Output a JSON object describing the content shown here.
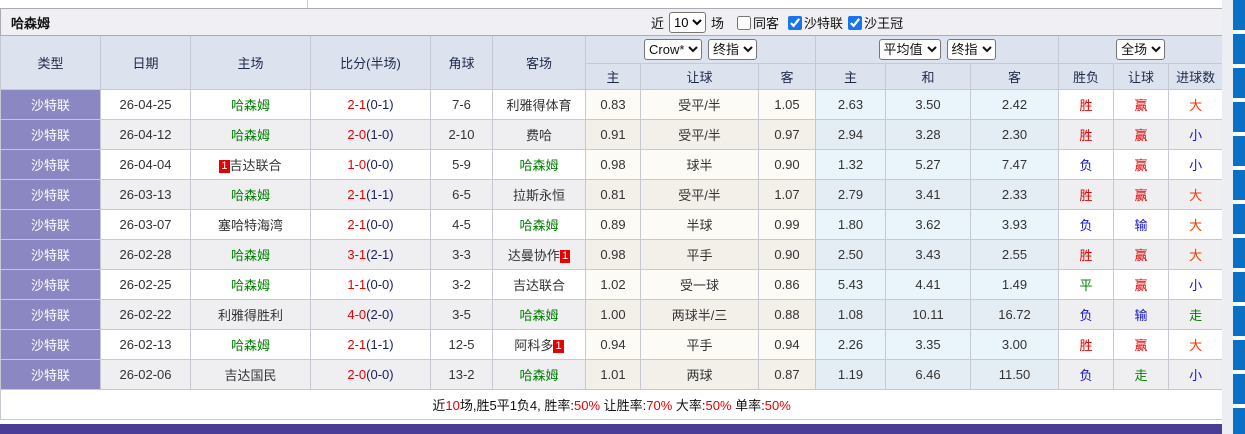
{
  "title": "哈森姆",
  "controls": {
    "recent_label": "近",
    "recent_value": "10",
    "matches_label": "场",
    "checkboxes": [
      {
        "label": "同客",
        "checked": false
      },
      {
        "label": "沙特联",
        "checked": true
      },
      {
        "label": "沙王冠",
        "checked": true
      }
    ]
  },
  "header": {
    "static_cols": [
      "类型",
      "日期",
      "主场",
      "比分(半场)",
      "角球",
      "客场"
    ],
    "odds_group": {
      "selects": [
        "Crow*",
        "终指"
      ],
      "sub": [
        "主",
        "让球",
        "客"
      ]
    },
    "avg_group": {
      "selects": [
        "平均值",
        "终指"
      ],
      "sub": [
        "主",
        "和",
        "客"
      ]
    },
    "result_group": {
      "selects": [
        "全场"
      ],
      "sub": [
        "胜负",
        "让球",
        "进球数"
      ]
    }
  },
  "colors": {
    "accent_purple": "#8b87c3",
    "header_bg": "#dde2ef",
    "blue_bar": "#0a70c6",
    "bottom_bar": "#4a3d96",
    "win_red": "#e60000",
    "lose_blue": "#1414cd",
    "draw_green": "#008000"
  },
  "rows": [
    {
      "type": "沙特联",
      "date": "26-04-25",
      "home": {
        "name": "哈森姆",
        "green": true,
        "badge": null
      },
      "score_ft": "2-1",
      "score_ht": "(0-1)",
      "corner": "7-6",
      "away": {
        "name": "利雅得体育",
        "green": false,
        "badge": null
      },
      "odds": [
        "0.83",
        "受平/半",
        "1.05"
      ],
      "avg": [
        "2.63",
        "3.50",
        "2.42"
      ],
      "res": [
        {
          "t": "胜",
          "c": "r"
        },
        {
          "t": "赢",
          "c": "r"
        },
        {
          "t": "大",
          "c": "o"
        }
      ]
    },
    {
      "type": "沙特联",
      "date": "26-04-12",
      "home": {
        "name": "哈森姆",
        "green": true,
        "badge": null
      },
      "score_ft": "2-0",
      "score_ht": "(1-0)",
      "corner": "2-10",
      "away": {
        "name": "费哈",
        "green": false,
        "badge": null
      },
      "odds": [
        "0.91",
        "受平/半",
        "0.97"
      ],
      "avg": [
        "2.94",
        "3.28",
        "2.30"
      ],
      "res": [
        {
          "t": "胜",
          "c": "r"
        },
        {
          "t": "赢",
          "c": "r"
        },
        {
          "t": "小",
          "c": "b"
        }
      ]
    },
    {
      "type": "沙特联",
      "date": "26-04-04",
      "home": {
        "name": "吉达联合",
        "green": false,
        "badge": "before"
      },
      "score_ft": "1-0",
      "score_ht": "(0-0)",
      "corner": "5-9",
      "away": {
        "name": "哈森姆",
        "green": true,
        "badge": null
      },
      "odds": [
        "0.98",
        "球半",
        "0.90"
      ],
      "avg": [
        "1.32",
        "5.27",
        "7.47"
      ],
      "res": [
        {
          "t": "负",
          "c": "b"
        },
        {
          "t": "赢",
          "c": "r"
        },
        {
          "t": "小",
          "c": "b"
        }
      ]
    },
    {
      "type": "沙特联",
      "date": "26-03-13",
      "home": {
        "name": "哈森姆",
        "green": true,
        "badge": null
      },
      "score_ft": "2-1",
      "score_ht": "(1-1)",
      "corner": "6-5",
      "away": {
        "name": "拉斯永恒",
        "green": false,
        "badge": null
      },
      "odds": [
        "0.81",
        "受平/半",
        "1.07"
      ],
      "avg": [
        "2.79",
        "3.41",
        "2.33"
      ],
      "res": [
        {
          "t": "胜",
          "c": "r"
        },
        {
          "t": "赢",
          "c": "r"
        },
        {
          "t": "大",
          "c": "o"
        }
      ]
    },
    {
      "type": "沙特联",
      "date": "26-03-07",
      "home": {
        "name": "塞哈特海湾",
        "green": false,
        "badge": null
      },
      "score_ft": "2-1",
      "score_ht": "(0-0)",
      "corner": "4-5",
      "away": {
        "name": "哈森姆",
        "green": true,
        "badge": null
      },
      "odds": [
        "0.89",
        "半球",
        "0.99"
      ],
      "avg": [
        "1.80",
        "3.62",
        "3.93"
      ],
      "res": [
        {
          "t": "负",
          "c": "b"
        },
        {
          "t": "输",
          "c": "b"
        },
        {
          "t": "大",
          "c": "o"
        }
      ]
    },
    {
      "type": "沙特联",
      "date": "26-02-28",
      "home": {
        "name": "哈森姆",
        "green": true,
        "badge": null
      },
      "score_ft": "3-1",
      "score_ht": "(2-1)",
      "corner": "3-3",
      "away": {
        "name": "达曼协作",
        "green": false,
        "badge": "after"
      },
      "odds": [
        "0.98",
        "平手",
        "0.90"
      ],
      "avg": [
        "2.50",
        "3.43",
        "2.55"
      ],
      "res": [
        {
          "t": "胜",
          "c": "r"
        },
        {
          "t": "赢",
          "c": "r"
        },
        {
          "t": "大",
          "c": "o"
        }
      ]
    },
    {
      "type": "沙特联",
      "date": "26-02-25",
      "home": {
        "name": "哈森姆",
        "green": true,
        "badge": null
      },
      "score_ft": "1-1",
      "score_ht": "(0-0)",
      "corner": "3-2",
      "away": {
        "name": "吉达联合",
        "green": false,
        "badge": null
      },
      "odds": [
        "1.02",
        "受一球",
        "0.86"
      ],
      "avg": [
        "5.43",
        "4.41",
        "1.49"
      ],
      "res": [
        {
          "t": "平",
          "c": "g"
        },
        {
          "t": "赢",
          "c": "r"
        },
        {
          "t": "小",
          "c": "b"
        }
      ]
    },
    {
      "type": "沙特联",
      "date": "26-02-22",
      "home": {
        "name": "利雅得胜利",
        "green": false,
        "badge": null
      },
      "score_ft": "4-0",
      "score_ht": "(2-0)",
      "corner": "3-5",
      "away": {
        "name": "哈森姆",
        "green": true,
        "badge": null
      },
      "odds": [
        "1.00",
        "两球半/三",
        "0.88"
      ],
      "avg": [
        "1.08",
        "10.11",
        "16.72"
      ],
      "res": [
        {
          "t": "负",
          "c": "b"
        },
        {
          "t": "输",
          "c": "b"
        },
        {
          "t": "走",
          "c": "g"
        }
      ]
    },
    {
      "type": "沙特联",
      "date": "26-02-13",
      "home": {
        "name": "哈森姆",
        "green": true,
        "badge": null
      },
      "score_ft": "2-1",
      "score_ht": "(1-1)",
      "corner": "12-5",
      "away": {
        "name": "阿科多",
        "green": false,
        "badge": "after"
      },
      "odds": [
        "0.94",
        "平手",
        "0.94"
      ],
      "avg": [
        "2.26",
        "3.35",
        "3.00"
      ],
      "res": [
        {
          "t": "胜",
          "c": "r"
        },
        {
          "t": "赢",
          "c": "r"
        },
        {
          "t": "大",
          "c": "o"
        }
      ]
    },
    {
      "type": "沙特联",
      "date": "26-02-06",
      "home": {
        "name": "吉达国民",
        "green": false,
        "badge": null
      },
      "score_ft": "2-0",
      "score_ht": "(0-0)",
      "corner": "13-2",
      "away": {
        "name": "哈森姆",
        "green": true,
        "badge": null
      },
      "odds": [
        "1.01",
        "两球",
        "0.87"
      ],
      "avg": [
        "1.19",
        "6.46",
        "11.50"
      ],
      "res": [
        {
          "t": "负",
          "c": "b"
        },
        {
          "t": "走",
          "c": "g"
        },
        {
          "t": "小",
          "c": "b"
        }
      ]
    }
  ],
  "badge_text": "1",
  "footer": {
    "segments": [
      {
        "text": "近",
        "red": false
      },
      {
        "text": "10",
        "red": true
      },
      {
        "text": "场,胜5平1负4, 胜率:",
        "red": false
      },
      {
        "text": "50%",
        "red": true
      },
      {
        "text": " 让胜率:",
        "red": false
      },
      {
        "text": "70%",
        "red": true
      },
      {
        "text": " 大率:",
        "red": false
      },
      {
        "text": "50%",
        "red": true
      },
      {
        "text": " 单率:",
        "red": false
      },
      {
        "text": "50%",
        "red": true
      }
    ]
  }
}
